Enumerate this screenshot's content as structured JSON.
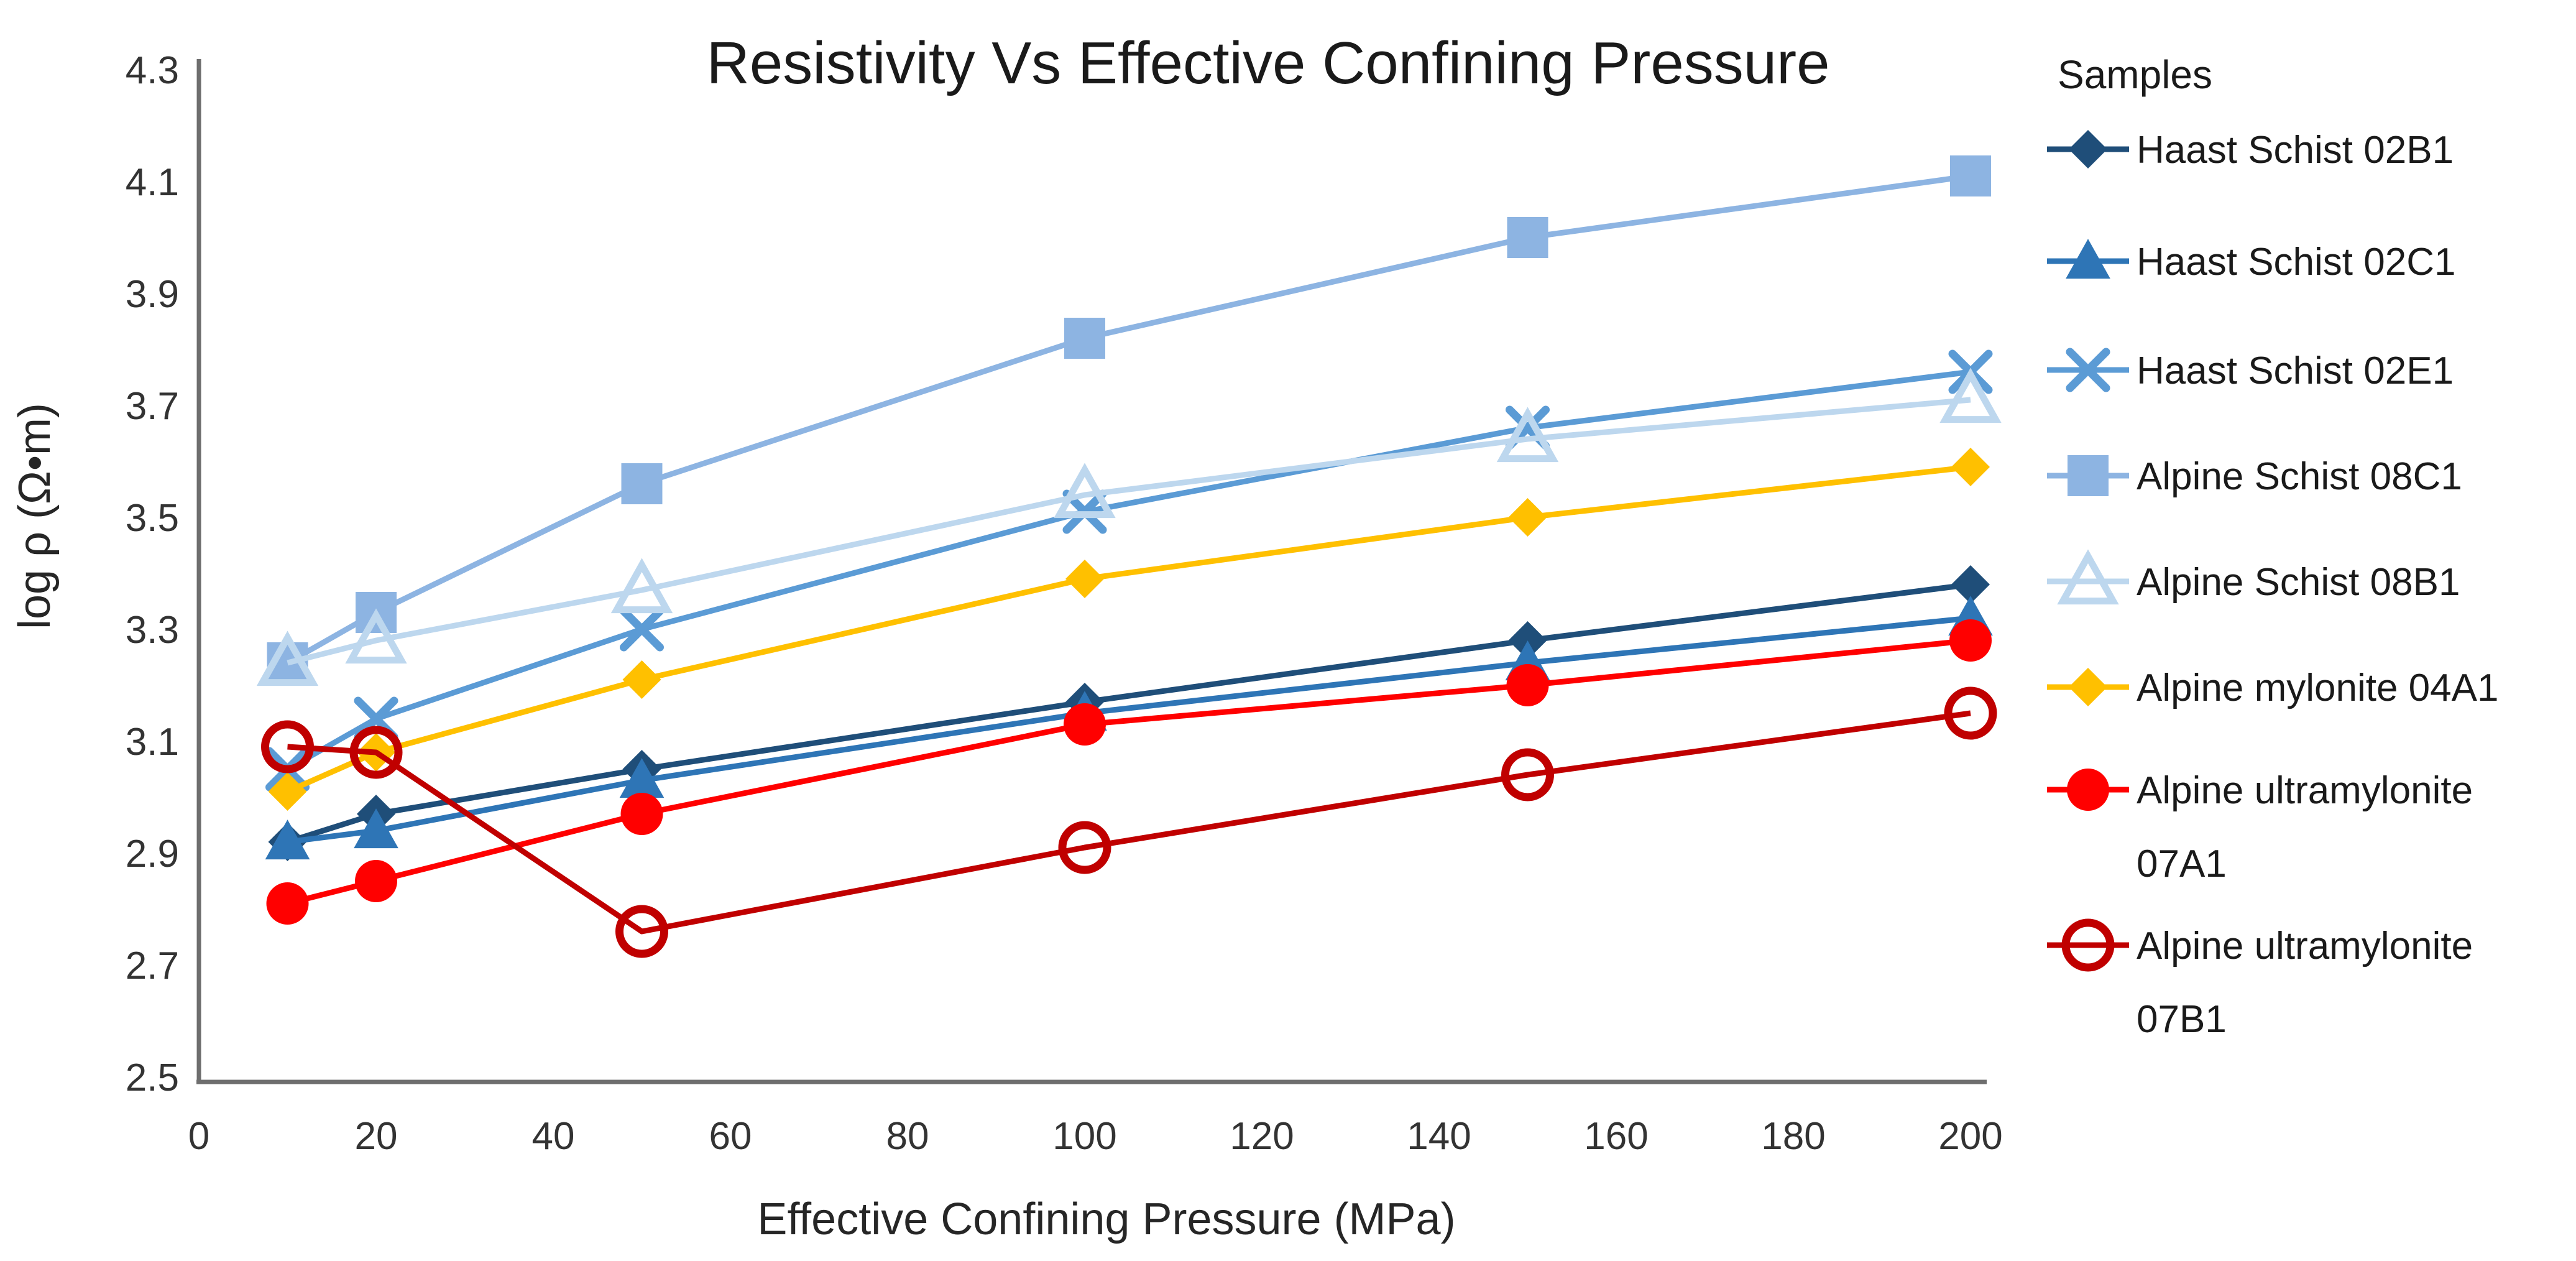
{
  "chart_data": {
    "type": "line",
    "title": "Resistivity Vs Effective Confining Pressure",
    "xlabel": "Effective Confining Pressure (MPa)",
    "ylabel": "log ρ (Ω•m)",
    "legend_title": "Samples",
    "legend_position": "right",
    "grid": false,
    "xlim": [
      0,
      200
    ],
    "ylim": [
      2.5,
      4.3
    ],
    "x_ticks": [
      0,
      20,
      40,
      60,
      80,
      100,
      120,
      140,
      160,
      180,
      200
    ],
    "y_ticks": [
      4.3,
      4.1,
      3.9,
      3.7,
      3.5,
      3.3,
      3.1,
      2.9,
      2.7,
      2.5
    ],
    "x": [
      10,
      20,
      50,
      100,
      150,
      200
    ],
    "series": [
      {
        "name": "Haast Schist 02B1",
        "legend_lines": [
          "Haast Schist 02B1"
        ],
        "color": "#1F4E79",
        "marker": "diamond",
        "values": [
          2.92,
          2.97,
          3.05,
          3.17,
          3.28,
          3.38
        ]
      },
      {
        "name": "Haast Schist 02C1",
        "legend_lines": [
          "Haast Schist 02C1"
        ],
        "color": "#2E75B6",
        "marker": "triangle",
        "values": [
          2.92,
          2.94,
          3.03,
          3.15,
          3.24,
          3.32
        ]
      },
      {
        "name": "Haast Schist 02E1",
        "legend_lines": [
          "Haast Schist 02E1"
        ],
        "color": "#5B9BD5",
        "marker": "x",
        "values": [
          3.05,
          3.14,
          3.3,
          3.51,
          3.66,
          3.76
        ]
      },
      {
        "name": "Alpine Schist 08C1",
        "legend_lines": [
          "Alpine Schist 08C1"
        ],
        "color": "#8DB4E2",
        "marker": "square",
        "values": [
          3.24,
          3.33,
          3.56,
          3.82,
          4.0,
          4.11
        ]
      },
      {
        "name": "Alpine Schist 08B1",
        "legend_lines": [
          "Alpine Schist 08B1"
        ],
        "color": "#BDD7EE",
        "marker": "triangle-open",
        "values": [
          3.24,
          3.28,
          3.37,
          3.54,
          3.64,
          3.71
        ]
      },
      {
        "name": "Alpine mylonite 04A1",
        "legend_lines": [
          "Alpine mylonite 04A1"
        ],
        "color": "#FFC000",
        "marker": "diamond",
        "values": [
          3.01,
          3.08,
          3.21,
          3.39,
          3.5,
          3.59
        ]
      },
      {
        "name": "Alpine ultramylonite 07A1",
        "legend_lines": [
          "Alpine ultramylonite",
          "07A1"
        ],
        "color": "#FF0000",
        "marker": "circle",
        "values": [
          2.81,
          2.85,
          2.97,
          3.13,
          3.2,
          3.28
        ]
      },
      {
        "name": "Alpine ultramylonite 07B1",
        "legend_lines": [
          "Alpine ultramylonite",
          "07B1"
        ],
        "color": "#C00000",
        "marker": "circle-open",
        "values": [
          3.09,
          3.08,
          2.76,
          2.91,
          3.04,
          3.15
        ]
      }
    ]
  }
}
